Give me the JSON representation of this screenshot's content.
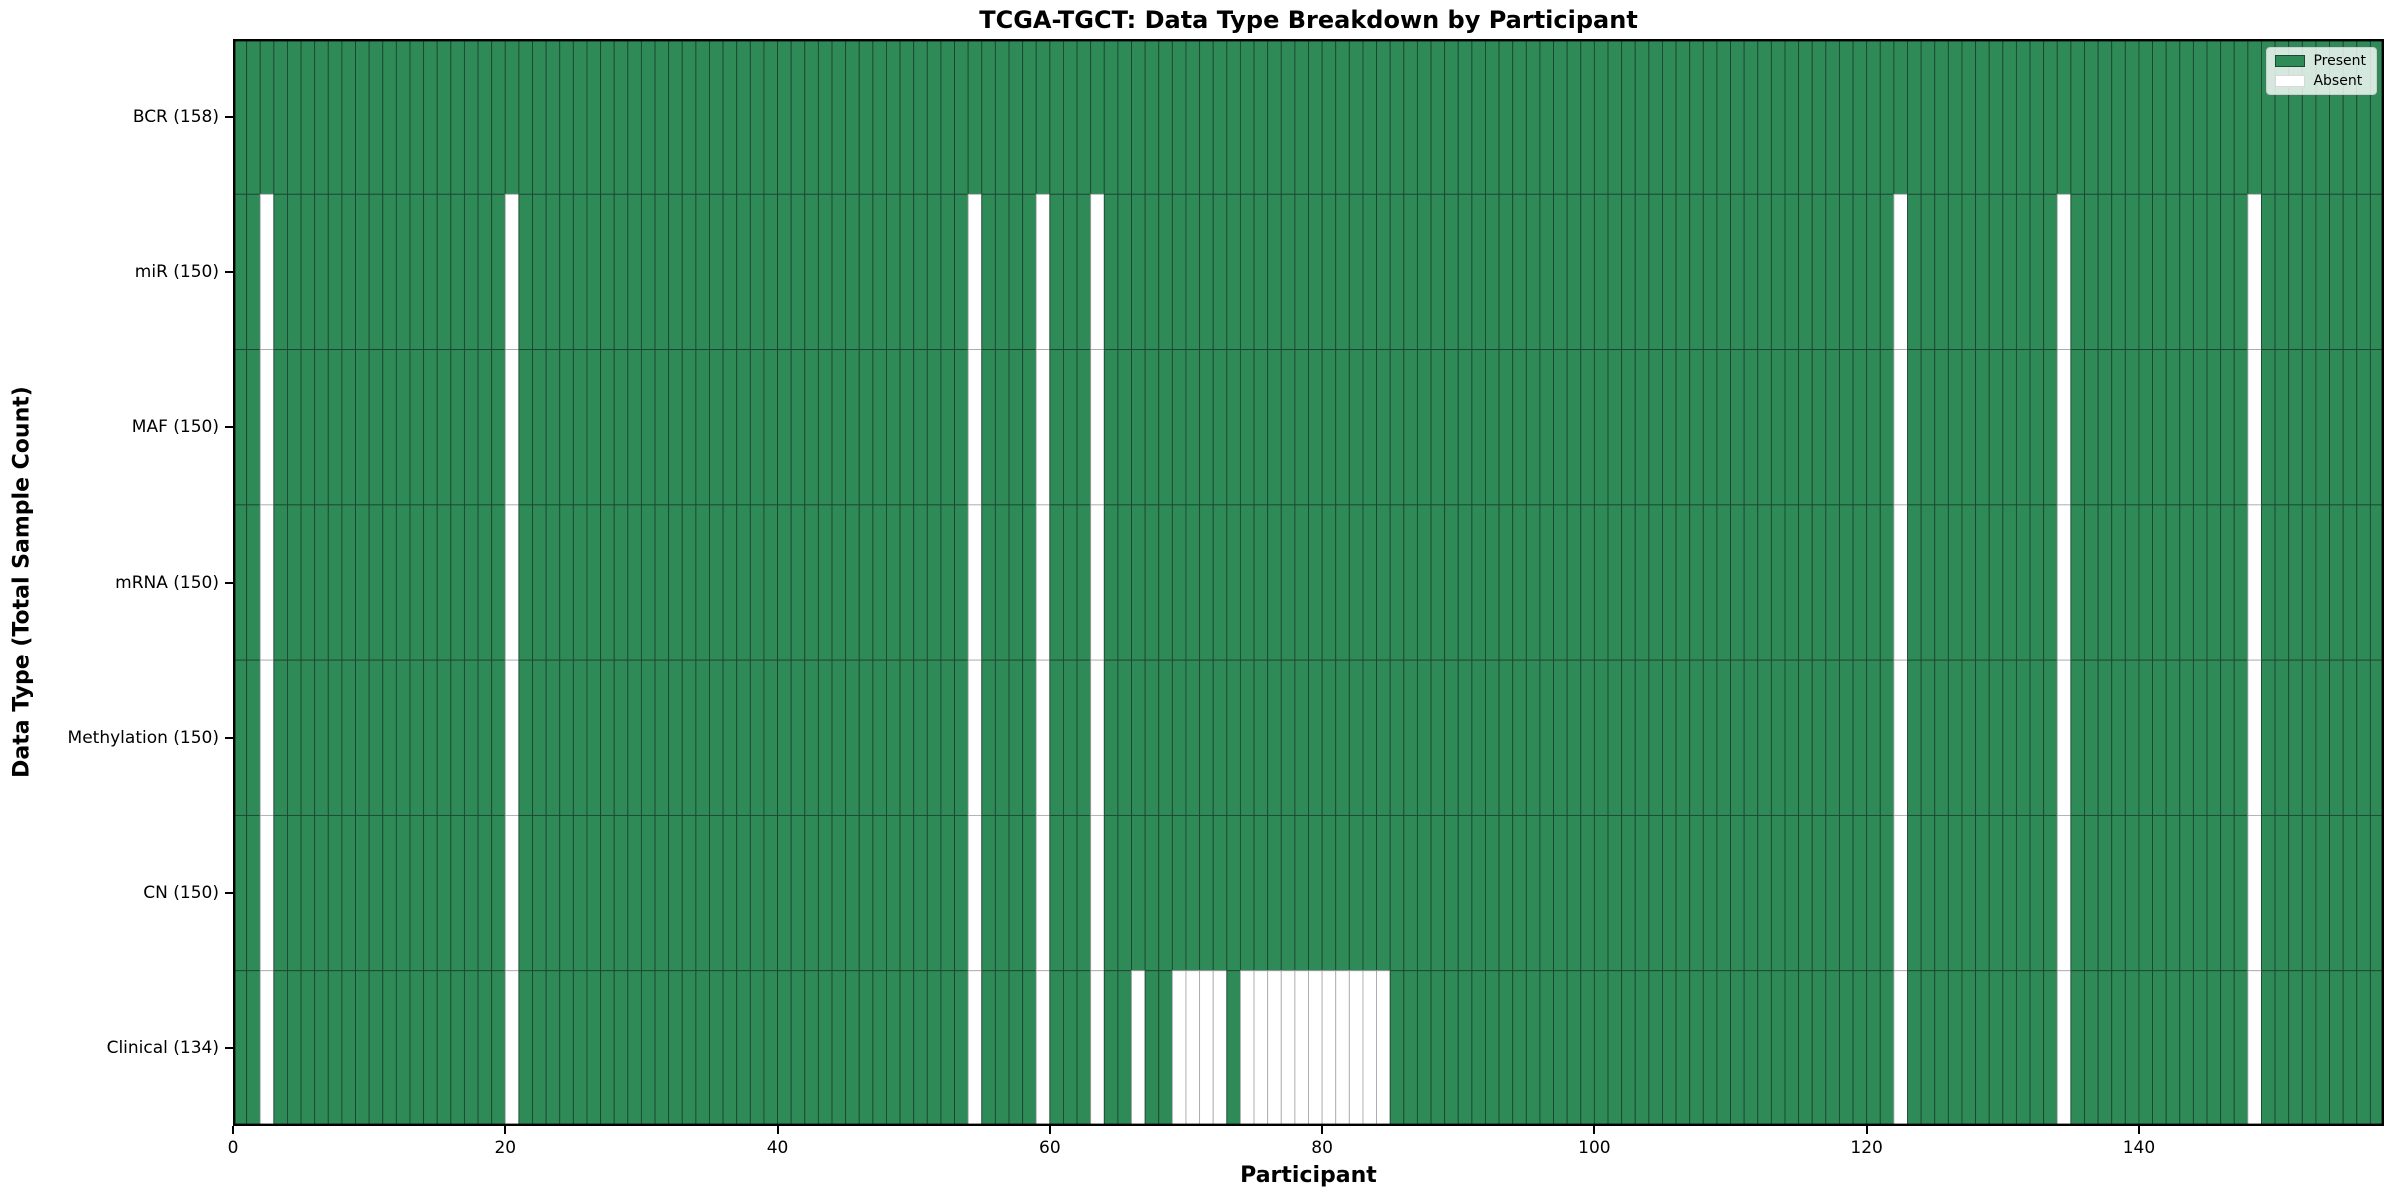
{
  "title": "TCGA-TGCT: Data Type Breakdown by Participant",
  "colors": {
    "present": "#2e8b57",
    "absent": "#ffffff",
    "present_edge": "#1d4531",
    "absent_edge": "#ababab",
    "spine": "#000000",
    "legend_border": "#cccccc"
  },
  "legend": {
    "present_label": "Present",
    "absent_label": "Absent",
    "position": "upper right"
  },
  "chart_data": {
    "type": "heatmap",
    "title": "TCGA-TGCT: Data Type Breakdown by Participant",
    "xlabel": "Participant",
    "ylabel": "Data Type (Total Sample Count)",
    "n_participants": 158,
    "x_range": [
      0,
      158
    ],
    "x_ticks": [
      0,
      20,
      40,
      60,
      80,
      100,
      120,
      140
    ],
    "grid": "per-cell borders, no gridlines",
    "legend_position": "upper right",
    "cell_encoding": "1 = Present (green), 0 = Absent (white); rows list absent participant indices, all other participants are present",
    "rows": [
      {
        "label": "BCR (158)",
        "name": "BCR",
        "total_present": 158,
        "absent_participants": []
      },
      {
        "label": "miR (150)",
        "name": "miR",
        "total_present": 150,
        "absent_participants": [
          2,
          20,
          54,
          59,
          63,
          122,
          134,
          148
        ]
      },
      {
        "label": "MAF (150)",
        "name": "MAF",
        "total_present": 150,
        "absent_participants": [
          2,
          20,
          54,
          59,
          63,
          122,
          134,
          148
        ]
      },
      {
        "label": "mRNA (150)",
        "name": "mRNA",
        "total_present": 150,
        "absent_participants": [
          2,
          20,
          54,
          59,
          63,
          122,
          134,
          148
        ]
      },
      {
        "label": "Methylation (150)",
        "name": "Methylation",
        "total_present": 150,
        "absent_participants": [
          2,
          20,
          54,
          59,
          63,
          122,
          134,
          148
        ]
      },
      {
        "label": "CN (150)",
        "name": "CN",
        "total_present": 150,
        "absent_participants": [
          2,
          20,
          54,
          59,
          63,
          122,
          134,
          148
        ]
      },
      {
        "label": "Clinical (134)",
        "name": "Clinical",
        "total_present": 134,
        "absent_participants": [
          2,
          20,
          54,
          59,
          63,
          66,
          69,
          70,
          71,
          72,
          74,
          75,
          76,
          77,
          78,
          79,
          80,
          81,
          82,
          83,
          84,
          122,
          134,
          148
        ]
      }
    ],
    "legend_entries": [
      {
        "label": "Present",
        "color": "#2e8b57"
      },
      {
        "label": "Absent",
        "color": "#ffffff"
      }
    ]
  }
}
